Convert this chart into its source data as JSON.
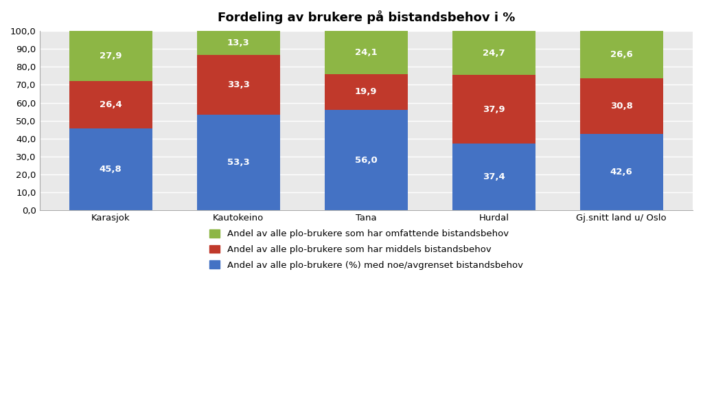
{
  "title": "Fordeling av brukere på bistandsbehov i %",
  "categories": [
    "Karasjok",
    "Kautokeino",
    "Tana",
    "Hurdal",
    "Gj.snitt land u/ Oslo"
  ],
  "blue_values": [
    45.8,
    53.3,
    56.0,
    37.4,
    42.6
  ],
  "red_values": [
    26.4,
    33.3,
    19.9,
    37.9,
    30.8
  ],
  "green_values": [
    27.9,
    13.3,
    24.1,
    24.7,
    26.6
  ],
  "blue_color": "#4472C4",
  "red_color": "#C0392B",
  "green_color": "#8DB645",
  "legend_blue": "Andel av alle plo-brukere (%) med noe/avgrenset bistandsbehov",
  "legend_red": "Andel av alle plo-brukere som har middels bistandsbehov",
  "legend_green": "Andel av alle plo-brukere som har omfattende bistandsbehov",
  "ylim": [
    0,
    100
  ],
  "yticks": [
    0.0,
    10.0,
    20.0,
    30.0,
    40.0,
    50.0,
    60.0,
    70.0,
    80.0,
    90.0,
    100.0
  ],
  "plot_bg_color": "#E9E9E9",
  "background_color": "#FFFFFF",
  "title_fontsize": 13,
  "label_fontsize": 9.5,
  "tick_fontsize": 9.5,
  "legend_fontsize": 9.5,
  "bar_width": 0.65
}
